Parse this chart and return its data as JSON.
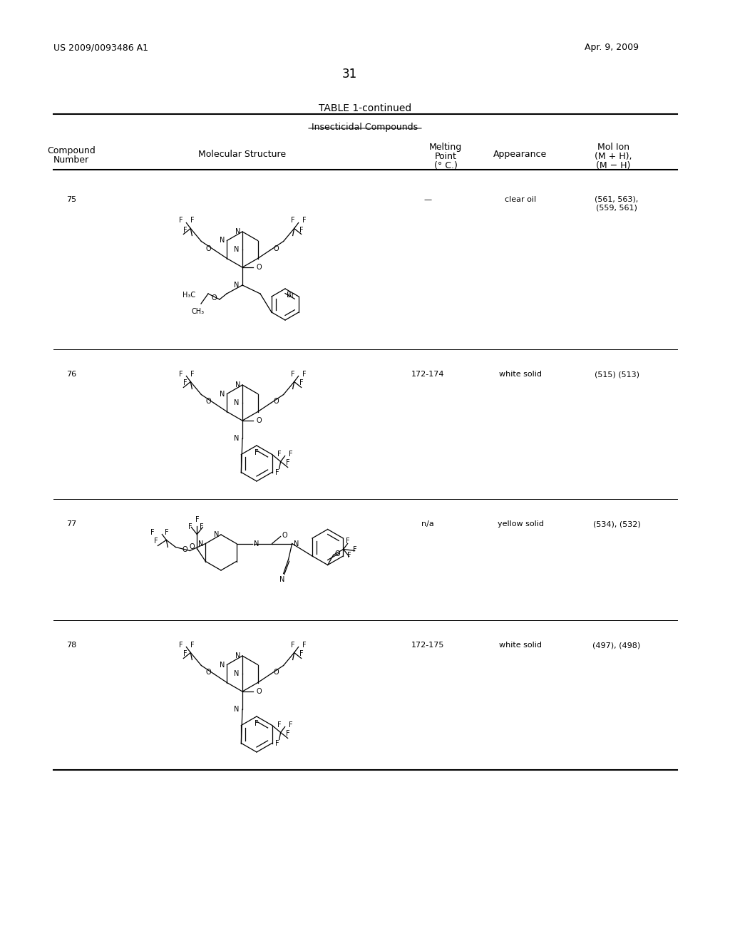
{
  "background_color": "#ffffff",
  "page_number": "31",
  "header_left": "US 2009/0093486 A1",
  "header_right": "Apr. 9, 2009",
  "table_title": "TABLE 1-continued",
  "table_subtitle": "Insecticidal Compounds",
  "col_headers": {
    "compound_number": "Compound\nNumber",
    "molecular_structure": "Molecular Structure",
    "melting_point": "Melting\nPoint\n(° C.)",
    "appearance": "Appearance",
    "mol_ion": "Mol Ion\n(M + H),\n(M − H)"
  },
  "rows": [
    {
      "number": "75",
      "melting_point": "—",
      "appearance": "clear oil",
      "mol_ion": "(561, 563),\n(559, 561)"
    },
    {
      "number": "76",
      "melting_point": "172-174",
      "appearance": "white solid",
      "mol_ion": "(515) (513)"
    },
    {
      "number": "77",
      "melting_point": "n/a",
      "appearance": "yellow solid",
      "mol_ion": "(534), (532)"
    },
    {
      "number": "78",
      "melting_point": "172-175",
      "appearance": "white solid",
      "mol_ion": "(497), (498)"
    }
  ],
  "font_size_header": 9,
  "font_size_body": 8,
  "font_size_page_header": 9,
  "font_size_title": 10,
  "font_size_page_num": 12
}
